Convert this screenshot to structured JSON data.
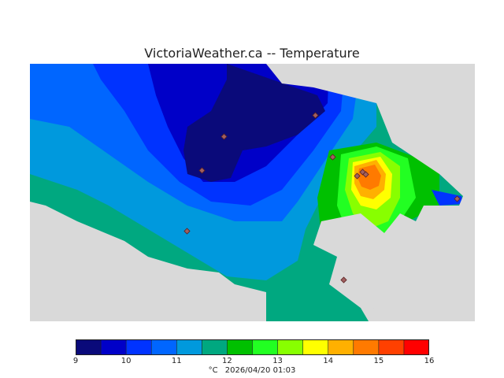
{
  "title": "VictoriaWeather.ca -- Temperature",
  "map": {
    "colors": {
      "land_gray": "#d9d9d9",
      "deep_navy": "#0a0a7a",
      "blue_1": "#0000c8",
      "blue_2": "#0033ff",
      "blue_3": "#0066ff",
      "blue_4": "#0099dd",
      "teal": "#00a880",
      "green": "#00c000",
      "bright_green": "#22ff22",
      "lime": "#88ff00",
      "yellow": "#ffff00",
      "orange_light": "#ffb000",
      "orange": "#ff7a00",
      "red_orange": "#ff4000",
      "station_marker": "#a06060"
    }
  },
  "colorbar": {
    "colors": [
      "#0a0a7a",
      "#0000c8",
      "#0033ff",
      "#0066ff",
      "#0099dd",
      "#00a880",
      "#00c000",
      "#22ff22",
      "#88ff00",
      "#ffff00",
      "#ffb000",
      "#ff7a00",
      "#ff4000",
      "#ff0000"
    ],
    "ticks": [
      "9",
      "10",
      "11",
      "12",
      "13",
      "14",
      "15",
      "16"
    ],
    "min": 9,
    "max": 16
  },
  "caption": {
    "unit": "°C",
    "datetime": "2026/04/20 01:03"
  }
}
